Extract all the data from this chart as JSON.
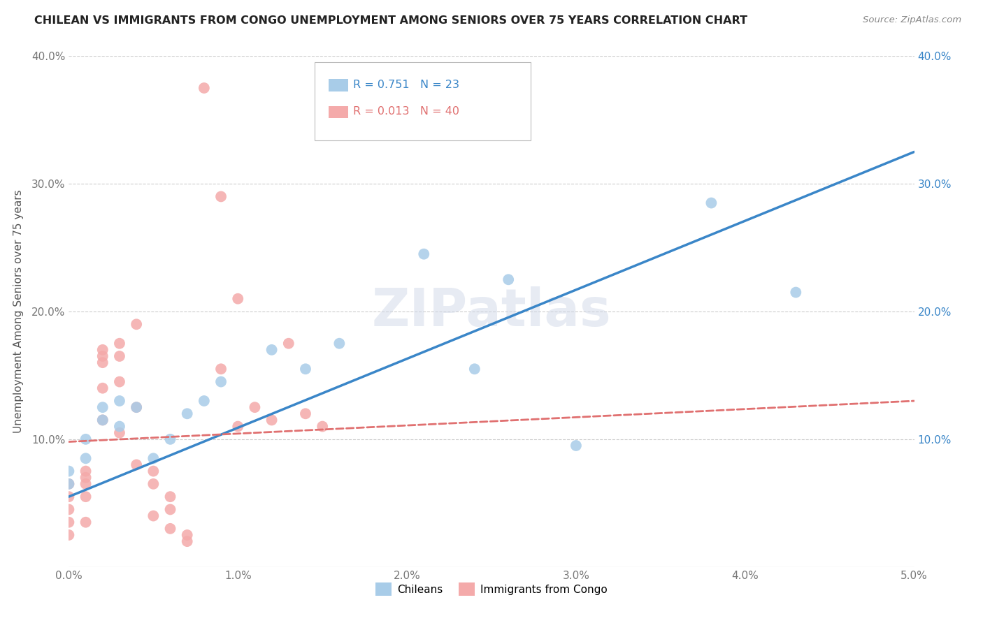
{
  "title": "CHILEAN VS IMMIGRANTS FROM CONGO UNEMPLOYMENT AMONG SENIORS OVER 75 YEARS CORRELATION CHART",
  "source": "Source: ZipAtlas.com",
  "ylabel": "Unemployment Among Seniors over 75 years",
  "xlim": [
    0,
    0.05
  ],
  "ylim": [
    0,
    0.4
  ],
  "xtick_vals": [
    0.0,
    0.01,
    0.02,
    0.03,
    0.04,
    0.05
  ],
  "ytick_vals": [
    0.0,
    0.1,
    0.2,
    0.3,
    0.4
  ],
  "xtick_labels": [
    "0.0%",
    "1.0%",
    "2.0%",
    "3.0%",
    "4.0%",
    "5.0%"
  ],
  "ytick_labels": [
    "",
    "10.0%",
    "20.0%",
    "30.0%",
    "40.0%"
  ],
  "legend_labels": [
    "Chileans",
    "Immigrants from Congo"
  ],
  "chilean_R": "0.751",
  "chilean_N": "23",
  "congo_R": "0.013",
  "congo_N": "40",
  "blue_color": "#a8cce8",
  "pink_color": "#f4aaaa",
  "blue_line_color": "#3a86c8",
  "pink_line_color": "#e07070",
  "watermark": "ZIPatlas",
  "chilean_x": [
    0.0,
    0.0,
    0.001,
    0.001,
    0.002,
    0.002,
    0.003,
    0.003,
    0.004,
    0.005,
    0.006,
    0.007,
    0.008,
    0.009,
    0.012,
    0.014,
    0.016,
    0.021,
    0.024,
    0.026,
    0.03,
    0.038,
    0.043
  ],
  "chilean_y": [
    0.065,
    0.075,
    0.1,
    0.085,
    0.115,
    0.125,
    0.11,
    0.13,
    0.125,
    0.085,
    0.1,
    0.12,
    0.13,
    0.145,
    0.17,
    0.155,
    0.175,
    0.245,
    0.155,
    0.225,
    0.095,
    0.285,
    0.215
  ],
  "congo_x": [
    0.0,
    0.0,
    0.0,
    0.0,
    0.0,
    0.001,
    0.001,
    0.001,
    0.001,
    0.001,
    0.002,
    0.002,
    0.002,
    0.002,
    0.002,
    0.003,
    0.003,
    0.003,
    0.003,
    0.004,
    0.004,
    0.004,
    0.005,
    0.005,
    0.005,
    0.006,
    0.006,
    0.006,
    0.007,
    0.007,
    0.008,
    0.009,
    0.009,
    0.01,
    0.01,
    0.011,
    0.012,
    0.013,
    0.014,
    0.015
  ],
  "congo_y": [
    0.065,
    0.055,
    0.045,
    0.035,
    0.025,
    0.075,
    0.07,
    0.065,
    0.055,
    0.035,
    0.17,
    0.165,
    0.16,
    0.14,
    0.115,
    0.175,
    0.165,
    0.145,
    0.105,
    0.19,
    0.125,
    0.08,
    0.075,
    0.065,
    0.04,
    0.055,
    0.045,
    0.03,
    0.025,
    0.02,
    0.375,
    0.29,
    0.155,
    0.21,
    0.11,
    0.125,
    0.115,
    0.175,
    0.12,
    0.11
  ],
  "blue_line_x0": 0.0,
  "blue_line_y0": 0.055,
  "blue_line_x1": 0.05,
  "blue_line_y1": 0.325,
  "pink_line_x0": 0.0,
  "pink_line_y0": 0.098,
  "pink_line_x1": 0.05,
  "pink_line_y1": 0.13
}
